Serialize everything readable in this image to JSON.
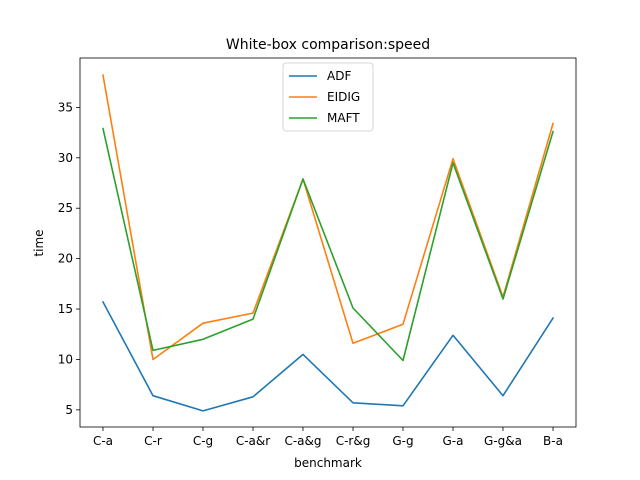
{
  "chart_data": {
    "type": "line",
    "title": "White-box comparison:speed",
    "xlabel": "benchmark",
    "ylabel": "time",
    "categories": [
      "C-a",
      "C-r",
      "C-g",
      "C-a&r",
      "C-a&g",
      "C-r&g",
      "G-g",
      "G-a",
      "G-g&a",
      "B-a"
    ],
    "yticks": [
      5,
      10,
      15,
      20,
      25,
      30,
      35
    ],
    "ylim": [
      3.3,
      39.9
    ],
    "grid": false,
    "legend_position": "top-center",
    "series": [
      {
        "name": "ADF",
        "color": "#1f77b4",
        "values": [
          15.7,
          6.4,
          4.9,
          6.3,
          10.5,
          5.7,
          5.4,
          12.4,
          6.4,
          14.1
        ]
      },
      {
        "name": "EIDIG",
        "color": "#ff7f0e",
        "values": [
          38.2,
          10.0,
          13.6,
          14.6,
          27.9,
          11.6,
          13.5,
          29.9,
          16.2,
          33.4
        ]
      },
      {
        "name": "MAFT",
        "color": "#2ca02c",
        "values": [
          32.9,
          10.9,
          12.0,
          14.0,
          27.9,
          15.1,
          9.9,
          29.5,
          16.0,
          32.6
        ]
      }
    ]
  }
}
